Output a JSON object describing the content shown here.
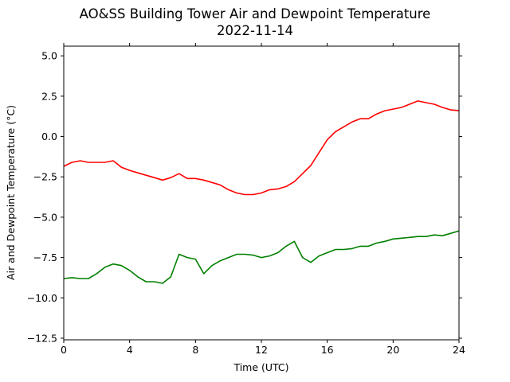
{
  "chart_data": {
    "type": "line",
    "title": "AO&SS Building Tower Air and Dewpoint Temperature",
    "subtitle": "2022-11-14",
    "xlabel": "Time (UTC)",
    "ylabel": "Air and Dewpoint Temperature (°C)",
    "xlim": [
      0,
      24
    ],
    "ylim": [
      -12.6,
      5.6
    ],
    "xticks": [
      0,
      4,
      8,
      12,
      16,
      20,
      24
    ],
    "yticks": [
      -12.5,
      -10.0,
      -7.5,
      -5.0,
      -2.5,
      0.0,
      2.5,
      5.0
    ],
    "grid": false,
    "legend": "none",
    "series": [
      {
        "color": "#ff0000",
        "x": [
          0,
          0.5,
          1,
          1.5,
          2,
          2.5,
          3,
          3.5,
          4,
          4.5,
          5,
          5.5,
          6,
          6.5,
          7,
          7.5,
          8,
          8.5,
          9,
          9.5,
          10,
          10.5,
          11,
          11.5,
          12,
          12.5,
          13,
          13.5,
          14,
          14.5,
          15,
          15.5,
          16,
          16.5,
          17,
          17.5,
          18,
          18.5,
          19,
          19.5,
          20,
          20.5,
          21,
          21.5,
          22,
          22.5,
          23,
          23.5,
          24
        ],
        "values": [
          -1.85,
          -1.6,
          -1.5,
          -1.6,
          -1.6,
          -1.6,
          -1.5,
          -1.9,
          -2.1,
          -2.25,
          -2.4,
          -2.55,
          -2.7,
          -2.55,
          -2.3,
          -2.6,
          -2.6,
          -2.7,
          -2.85,
          -3.0,
          -3.3,
          -3.5,
          -3.6,
          -3.6,
          -3.5,
          -3.3,
          -3.25,
          -3.1,
          -2.8,
          -2.3,
          -1.8,
          -1.0,
          -0.2,
          0.3,
          0.6,
          0.9,
          1.1,
          1.1,
          1.4,
          1.6,
          1.7,
          1.8,
          2.0,
          2.2,
          2.1,
          2.0,
          1.8,
          1.65,
          1.6
        ]
      },
      {
        "color": "#008000",
        "x": [
          0,
          0.5,
          1,
          1.5,
          2,
          2.5,
          3,
          3.5,
          4,
          4.5,
          5,
          5.5,
          6,
          6.5,
          7,
          7.5,
          8,
          8.5,
          9,
          9.5,
          10,
          10.5,
          11,
          11.5,
          12,
          12.5,
          13,
          13.5,
          14,
          14.5,
          15,
          15.5,
          16,
          16.5,
          17,
          17.5,
          18,
          18.5,
          19,
          19.5,
          20,
          20.5,
          21,
          21.5,
          22,
          22.5,
          23,
          23.5,
          24
        ],
        "values": [
          -8.8,
          -8.75,
          -8.8,
          -8.8,
          -8.5,
          -8.1,
          -7.9,
          -8.0,
          -8.3,
          -8.7,
          -9.0,
          -9.0,
          -9.1,
          -8.7,
          -7.3,
          -7.5,
          -7.6,
          -8.5,
          -8.0,
          -7.7,
          -7.5,
          -7.3,
          -7.3,
          -7.35,
          -7.5,
          -7.4,
          -7.2,
          -6.8,
          -6.5,
          -7.5,
          -7.8,
          -7.4,
          -7.2,
          -7.0,
          -7.0,
          -6.95,
          -6.8,
          -6.8,
          -6.6,
          -6.5,
          -6.35,
          -6.3,
          -6.25,
          -6.2,
          -6.2,
          -6.1,
          -6.15,
          -6.0,
          -5.85
        ]
      }
    ]
  }
}
